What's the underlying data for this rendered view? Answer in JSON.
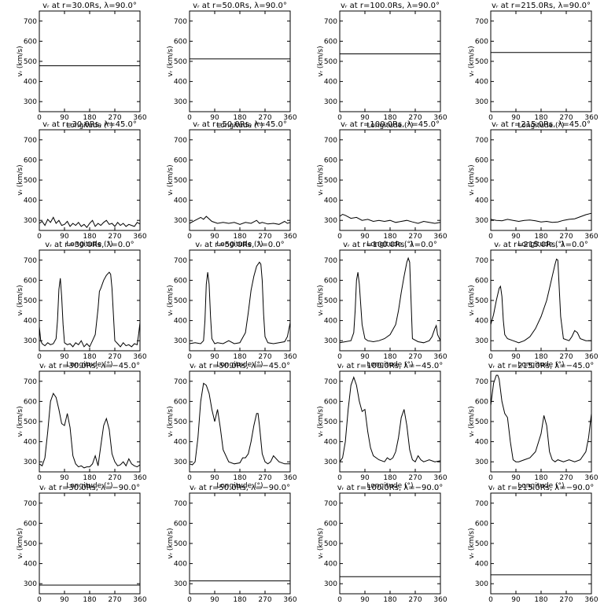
{
  "chart_data": [
    {
      "type": "line",
      "title": "vᵣ at r=30.0Rs, λ=90.0°",
      "xlabel": "Longitude (°)",
      "ylabel": "vᵣ (km/s)",
      "xlim": [
        0,
        360
      ],
      "ylim": [
        250,
        750
      ],
      "x": [
        0,
        360
      ],
      "y": [
        478,
        478
      ]
    },
    {
      "type": "line",
      "title": "vᵣ at r=50.0Rs, λ=90.0°",
      "xlabel": "Longitude (°)",
      "ylabel": "vᵣ (km/s)",
      "xlim": [
        0,
        360
      ],
      "ylim": [
        250,
        750
      ],
      "x": [
        0,
        360
      ],
      "y": [
        512,
        512
      ]
    },
    {
      "type": "line",
      "title": "vᵣ at r=100.0Rs, λ=90.0°",
      "xlabel": "Longitude (°)",
      "ylabel": "vᵣ (km/s)",
      "xlim": [
        0,
        360
      ],
      "ylim": [
        250,
        750
      ],
      "x": [
        0,
        360
      ],
      "y": [
        537,
        537
      ]
    },
    {
      "type": "line",
      "title": "vᵣ at r=215.0Rs, λ=90.0°",
      "xlabel": "Longitude (°)",
      "ylabel": "vᵣ (km/s)",
      "xlim": [
        0,
        360
      ],
      "ylim": [
        250,
        750
      ],
      "x": [
        0,
        360
      ],
      "y": [
        544,
        544
      ]
    },
    {
      "type": "line",
      "title": "vᵣ at r=30.0Rs, λ=45.0°",
      "xlabel": "Longitude (°)",
      "ylabel": "vᵣ (km/s)",
      "xlim": [
        0,
        360
      ],
      "ylim": [
        250,
        750
      ],
      "x": [
        0,
        10,
        20,
        30,
        40,
        50,
        60,
        70,
        80,
        90,
        100,
        110,
        120,
        130,
        140,
        150,
        160,
        170,
        180,
        190,
        200,
        210,
        220,
        230,
        240,
        250,
        260,
        270,
        280,
        290,
        300,
        310,
        320,
        330,
        340,
        350,
        360
      ],
      "y": [
        285,
        295,
        275,
        305,
        290,
        315,
        285,
        300,
        275,
        280,
        295,
        270,
        285,
        275,
        290,
        270,
        280,
        265,
        285,
        300,
        270,
        285,
        275,
        290,
        300,
        280,
        285,
        270,
        290,
        275,
        285,
        270,
        280,
        275,
        270,
        290,
        282
      ]
    },
    {
      "type": "line",
      "title": "vᵣ at r=50.0Rs, λ=45.0°",
      "xlabel": "Longitude (°)",
      "ylabel": "vᵣ (km/s)",
      "xlim": [
        0,
        360
      ],
      "ylim": [
        250,
        750
      ],
      "x": [
        0,
        20,
        40,
        50,
        60,
        80,
        100,
        120,
        140,
        160,
        180,
        200,
        220,
        240,
        250,
        260,
        280,
        300,
        320,
        340,
        350,
        360
      ],
      "y": [
        285,
        300,
        315,
        305,
        320,
        295,
        285,
        290,
        285,
        290,
        280,
        290,
        285,
        300,
        285,
        290,
        282,
        285,
        280,
        295,
        285,
        290
      ]
    },
    {
      "type": "line",
      "title": "vᵣ at r=100.0Rs, λ=45.0°",
      "xlabel": "Longitude (°)",
      "ylabel": "vᵣ (km/s)",
      "xlim": [
        0,
        360
      ],
      "ylim": [
        250,
        750
      ],
      "x": [
        0,
        10,
        20,
        40,
        60,
        80,
        100,
        120,
        140,
        160,
        180,
        200,
        220,
        240,
        260,
        280,
        300,
        320,
        340,
        360
      ],
      "y": [
        320,
        330,
        325,
        310,
        315,
        300,
        305,
        295,
        300,
        295,
        300,
        290,
        295,
        300,
        292,
        285,
        295,
        290,
        285,
        290
      ]
    },
    {
      "type": "line",
      "title": "vᵣ at r=215.0Rs, λ=45.0°",
      "xlabel": "Longitude (°)",
      "ylabel": "vᵣ (km/s)",
      "xlim": [
        0,
        360
      ],
      "ylim": [
        250,
        750
      ],
      "x": [
        0,
        20,
        40,
        60,
        80,
        100,
        120,
        140,
        160,
        180,
        200,
        220,
        240,
        260,
        280,
        300,
        320,
        340,
        360
      ],
      "y": [
        305,
        300,
        298,
        305,
        300,
        295,
        300,
        302,
        298,
        292,
        295,
        290,
        292,
        300,
        305,
        308,
        318,
        328,
        335
      ]
    },
    {
      "type": "line",
      "title": "vᵣ at r=30.0Rs, λ=0.0°",
      "xlabel": "Longitude (°)",
      "ylabel": "vᵣ (km/s)",
      "xlim": [
        0,
        360
      ],
      "ylim": [
        250,
        750
      ],
      "x": [
        0,
        5,
        10,
        20,
        30,
        40,
        50,
        60,
        65,
        70,
        75,
        80,
        85,
        90,
        100,
        110,
        120,
        130,
        140,
        150,
        160,
        170,
        180,
        190,
        200,
        210,
        215,
        220,
        230,
        240,
        250,
        255,
        260,
        265,
        270,
        280,
        290,
        300,
        310,
        320,
        330,
        340,
        350,
        355,
        360
      ],
      "y": [
        370,
        300,
        285,
        275,
        290,
        280,
        285,
        310,
        400,
        555,
        610,
        520,
        380,
        290,
        280,
        285,
        270,
        290,
        280,
        300,
        270,
        285,
        270,
        300,
        330,
        460,
        545,
        560,
        600,
        625,
        640,
        630,
        560,
        430,
        300,
        285,
        270,
        290,
        275,
        280,
        270,
        285,
        280,
        330,
        390
      ]
    },
    {
      "type": "line",
      "title": "vᵣ at r=50.0Rs, λ=0.0°",
      "xlabel": "Longitude (°)",
      "ylabel": "vᵣ (km/s)",
      "xlim": [
        0,
        360
      ],
      "ylim": [
        250,
        750
      ],
      "x": [
        0,
        20,
        40,
        50,
        55,
        60,
        65,
        70,
        75,
        80,
        90,
        100,
        120,
        140,
        160,
        180,
        200,
        210,
        220,
        230,
        240,
        250,
        255,
        260,
        265,
        270,
        280,
        300,
        320,
        340,
        350,
        360
      ],
      "y": [
        285,
        290,
        285,
        300,
        400,
        580,
        640,
        580,
        420,
        310,
        285,
        290,
        285,
        300,
        285,
        290,
        340,
        440,
        550,
        620,
        670,
        690,
        680,
        600,
        430,
        320,
        290,
        285,
        290,
        295,
        320,
        390
      ]
    },
    {
      "type": "line",
      "title": "vᵣ at r=100.0Rs, λ=0.0°",
      "xlabel": "Longitude (°)",
      "ylabel": "vᵣ (km/s)",
      "xlim": [
        0,
        360
      ],
      "ylim": [
        250,
        750
      ],
      "x": [
        0,
        20,
        40,
        50,
        55,
        60,
        65,
        70,
        80,
        90,
        100,
        120,
        140,
        160,
        180,
        200,
        210,
        220,
        230,
        240,
        245,
        250,
        260,
        280,
        300,
        320,
        330,
        340,
        345,
        350,
        360
      ],
      "y": [
        290,
        295,
        300,
        340,
        450,
        600,
        640,
        580,
        380,
        310,
        300,
        295,
        300,
        310,
        330,
        380,
        450,
        540,
        620,
        690,
        710,
        690,
        310,
        295,
        290,
        300,
        320,
        360,
        375,
        330,
        300
      ]
    },
    {
      "type": "line",
      "title": "vᵣ at r=215.0Rs, λ=0.0°",
      "xlabel": "Longitude (°)",
      "ylabel": "vᵣ (km/s)",
      "xlim": [
        0,
        360
      ],
      "ylim": [
        250,
        750
      ],
      "x": [
        0,
        10,
        20,
        30,
        35,
        40,
        45,
        50,
        60,
        80,
        100,
        120,
        140,
        160,
        180,
        200,
        210,
        220,
        230,
        235,
        240,
        250,
        260,
        280,
        290,
        300,
        310,
        320,
        340,
        360
      ],
      "y": [
        380,
        430,
        500,
        560,
        570,
        520,
        400,
        330,
        310,
        300,
        290,
        300,
        320,
        360,
        420,
        500,
        560,
        620,
        680,
        705,
        700,
        420,
        310,
        300,
        320,
        350,
        340,
        310,
        300,
        300
      ]
    },
    {
      "type": "line",
      "title": "vᵣ at r=30.0Rs, λ=−45.0°",
      "xlabel": "Longitude (°)",
      "ylabel": "vᵣ (km/s)",
      "xlim": [
        0,
        360
      ],
      "ylim": [
        250,
        750
      ],
      "x": [
        0,
        10,
        20,
        30,
        40,
        50,
        60,
        70,
        80,
        90,
        100,
        110,
        120,
        130,
        140,
        150,
        160,
        170,
        180,
        190,
        200,
        210,
        220,
        230,
        240,
        250,
        260,
        270,
        280,
        290,
        300,
        310,
        320,
        330,
        340,
        350,
        360
      ],
      "y": [
        290,
        280,
        320,
        450,
        600,
        640,
        620,
        560,
        490,
        480,
        540,
        470,
        330,
        290,
        275,
        280,
        270,
        275,
        275,
        290,
        330,
        280,
        380,
        480,
        515,
        460,
        340,
        300,
        280,
        285,
        300,
        280,
        315,
        290,
        280,
        275,
        285
      ]
    },
    {
      "type": "line",
      "title": "vᵣ at r=50.0Rs, λ=−45.0°",
      "xlabel": "Longitude (°)",
      "ylabel": "vᵣ (km/s)",
      "xlim": [
        0,
        360
      ],
      "ylim": [
        250,
        750
      ],
      "x": [
        0,
        10,
        20,
        30,
        40,
        50,
        60,
        70,
        80,
        90,
        100,
        110,
        120,
        140,
        160,
        180,
        190,
        200,
        210,
        220,
        230,
        240,
        245,
        250,
        260,
        270,
        280,
        290,
        300,
        320,
        340,
        360
      ],
      "y": [
        290,
        285,
        300,
        420,
        600,
        690,
        680,
        640,
        560,
        500,
        560,
        470,
        360,
        300,
        290,
        295,
        320,
        320,
        340,
        400,
        480,
        540,
        540,
        480,
        340,
        300,
        290,
        300,
        330,
        300,
        290,
        290
      ]
    },
    {
      "type": "line",
      "title": "vᵣ at r=100.0Rs, λ=−45.0°",
      "xlabel": "Longitude (°)",
      "ylabel": "vᵣ (km/s)",
      "xlim": [
        0,
        360
      ],
      "ylim": [
        250,
        750
      ],
      "x": [
        0,
        10,
        20,
        30,
        40,
        50,
        60,
        70,
        80,
        90,
        100,
        110,
        120,
        140,
        160,
        170,
        180,
        190,
        200,
        210,
        220,
        230,
        240,
        250,
        260,
        270,
        280,
        290,
        300,
        320,
        340,
        360
      ],
      "y": [
        300,
        320,
        400,
        560,
        680,
        720,
        680,
        600,
        550,
        560,
        450,
        370,
        330,
        310,
        300,
        320,
        310,
        320,
        350,
        420,
        520,
        560,
        480,
        360,
        310,
        300,
        330,
        310,
        300,
        310,
        300,
        305
      ]
    },
    {
      "type": "line",
      "title": "vᵣ at r=215.0Rs, λ=−45.0°",
      "xlabel": "Longitude (°)",
      "ylabel": "vᵣ (km/s)",
      "xlim": [
        0,
        360
      ],
      "ylim": [
        250,
        750
      ],
      "x": [
        0,
        10,
        20,
        25,
        30,
        40,
        50,
        60,
        70,
        80,
        90,
        100,
        120,
        140,
        160,
        180,
        190,
        200,
        210,
        220,
        230,
        240,
        260,
        280,
        300,
        320,
        340,
        350,
        360
      ],
      "y": [
        580,
        690,
        730,
        730,
        710,
        600,
        540,
        520,
        400,
        310,
        300,
        300,
        310,
        320,
        350,
        440,
        530,
        480,
        350,
        310,
        300,
        310,
        300,
        310,
        300,
        310,
        350,
        420,
        540
      ]
    },
    {
      "type": "line",
      "title": "vᵣ at r=30.0Rs, λ=−90.0°",
      "xlabel": "Longitude (°)",
      "ylabel": "vᵣ (km/s)",
      "xlim": [
        0,
        360
      ],
      "ylim": [
        250,
        750
      ],
      "x": [
        0,
        360
      ],
      "y": [
        293,
        293
      ]
    },
    {
      "type": "line",
      "title": "vᵣ at r=50.0Rs, λ=−90.0°",
      "xlabel": "Longitude (°)",
      "ylabel": "vᵣ (km/s)",
      "xlim": [
        0,
        360
      ],
      "ylim": [
        250,
        750
      ],
      "x": [
        0,
        360
      ],
      "y": [
        314,
        314
      ]
    },
    {
      "type": "line",
      "title": "vᵣ at r=100.0Rs, λ=−90.0°",
      "xlabel": "Longitude (°)",
      "ylabel": "vᵣ (km/s)",
      "xlim": [
        0,
        360
      ],
      "ylim": [
        250,
        750
      ],
      "x": [
        0,
        360
      ],
      "y": [
        335,
        335
      ]
    },
    {
      "type": "line",
      "title": "vᵣ at r=215.0Rs, λ=−90.0°",
      "xlabel": "Longitude (°)",
      "ylabel": "vᵣ (km/s)",
      "xlim": [
        0,
        360
      ],
      "ylim": [
        250,
        750
      ],
      "x": [
        0,
        360
      ],
      "y": [
        344,
        344
      ]
    }
  ],
  "axes": {
    "x_ticks": [
      0,
      90,
      180,
      270,
      360
    ],
    "y_ticks": [
      300,
      400,
      500,
      600,
      700
    ]
  }
}
